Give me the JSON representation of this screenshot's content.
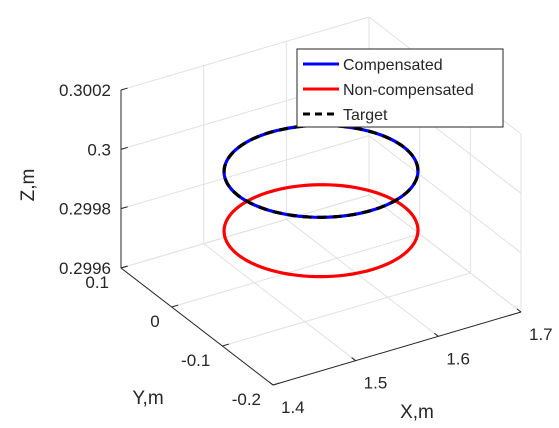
{
  "chart_data": {
    "type": "line3d",
    "title": "",
    "xlabel": "X,m",
    "ylabel": "Y,m",
    "zlabel": "Z,m",
    "xlim": [
      1.4,
      1.7
    ],
    "ylim": [
      -0.2,
      0.1
    ],
    "zlim": [
      0.2996,
      0.3002
    ],
    "x_ticks": [
      "1.4",
      "1.5",
      "1.6",
      "1.7"
    ],
    "y_ticks": [
      "-0.2",
      "-0.1",
      "0",
      "0.1"
    ],
    "z_ticks": [
      "0.2996",
      "0.2998",
      "0.3",
      "0.3002"
    ],
    "grid": true,
    "legend_position": "top-right",
    "series": [
      {
        "name": "Compensated",
        "shape": "circle",
        "center": [
          1.55,
          -0.05
        ],
        "radius": 0.1,
        "z": 0.3,
        "color": "#0000ff",
        "dash": "solid"
      },
      {
        "name": "Non-compensated",
        "shape": "circle",
        "center": [
          1.55,
          -0.05
        ],
        "radius": 0.1,
        "z": 0.2998,
        "color": "#ff0000",
        "dash": "solid"
      },
      {
        "name": "Target",
        "shape": "circle",
        "center": [
          1.55,
          -0.05
        ],
        "radius": 0.1,
        "z": 0.3,
        "color": "#000000",
        "dash": "dashed"
      }
    ]
  }
}
